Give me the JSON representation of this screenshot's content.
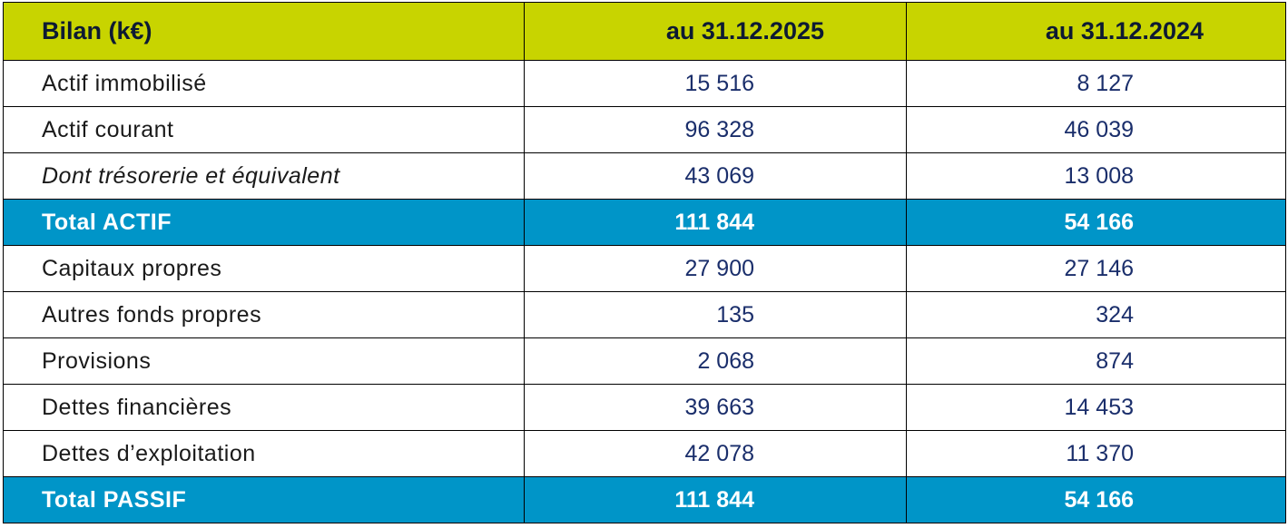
{
  "table": {
    "header": [
      "Bilan (k€)",
      "au 31.12.2025",
      "au 31.12.2024"
    ],
    "rows": [
      [
        "Actif immobilisé",
        "15 516",
        "8 127"
      ],
      [
        "Actif courant",
        "96 328",
        "46 039"
      ],
      [
        "Dont trésorerie et équivalent",
        "43 069",
        "13 008"
      ],
      [
        "Total ACTIF",
        "111 844",
        "54 166"
      ],
      [
        "Capitaux propres",
        "27 900",
        "27 146"
      ],
      [
        "Autres fonds propres",
        "135",
        "324"
      ],
      [
        "Provisions",
        "2 068",
        "874"
      ],
      [
        "Dettes financières",
        "39 663",
        "14 453"
      ],
      [
        "Dettes d’exploitation",
        "42 078",
        "11 370"
      ],
      [
        "Total PASSIF",
        "111 844",
        "54 166"
      ]
    ]
  }
}
